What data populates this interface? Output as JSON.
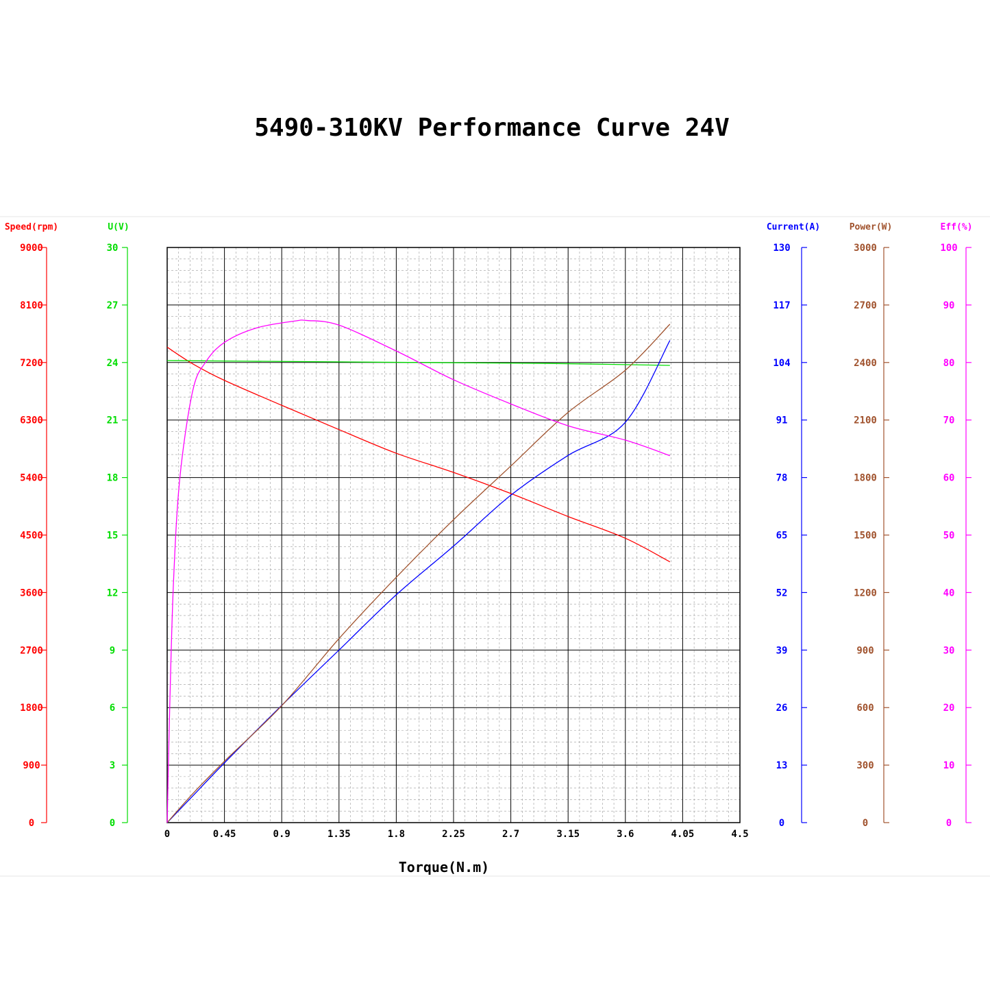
{
  "chart_data": {
    "type": "line",
    "title": "5490-310KV Performance Curve 24V",
    "xlabel": "Torque(N.m)",
    "xlim": [
      0,
      4.5
    ],
    "x_ticks": [
      "0",
      "0.45",
      "0.9",
      "1.35",
      "1.8",
      "2.25",
      "2.7",
      "3.15",
      "3.6",
      "4.05",
      "4.5"
    ],
    "grid": true,
    "axes": [
      {
        "key": "speed",
        "side": "left",
        "label": "Speed(rpm)",
        "color": "#ff0000",
        "range": [
          0,
          9000
        ],
        "ticks": [
          "0",
          "900",
          "1800",
          "2700",
          "3600",
          "4500",
          "5400",
          "6300",
          "7200",
          "8100",
          "9000"
        ]
      },
      {
        "key": "voltage",
        "side": "left",
        "label": "U(V)",
        "color": "#00dd00",
        "range": [
          0,
          30
        ],
        "ticks": [
          "0",
          "3",
          "6",
          "9",
          "12",
          "15",
          "18",
          "21",
          "24",
          "27",
          "30"
        ]
      },
      {
        "key": "current",
        "side": "right",
        "label": "Current(A)",
        "color": "#0000ff",
        "range": [
          0,
          130
        ],
        "ticks": [
          "0",
          "13",
          "26",
          "39",
          "52",
          "65",
          "78",
          "91",
          "104",
          "117",
          "130"
        ]
      },
      {
        "key": "power",
        "side": "right",
        "label": "Power(W)",
        "color": "#a0522d",
        "range": [
          0,
          3000
        ],
        "ticks": [
          "0",
          "300",
          "600",
          "900",
          "1200",
          "1500",
          "1800",
          "2100",
          "2400",
          "2700",
          "3000"
        ]
      },
      {
        "key": "efficiency",
        "side": "right",
        "label": "Eff(%)",
        "color": "#ff00ff",
        "range": [
          0,
          100
        ],
        "ticks": [
          "0",
          "10",
          "20",
          "30",
          "40",
          "50",
          "60",
          "70",
          "80",
          "90",
          "100"
        ]
      }
    ],
    "series": [
      {
        "axis": "speed",
        "color": "#ff0000",
        "x": [
          0,
          0.2,
          0.45,
          0.9,
          1.35,
          1.8,
          2.25,
          2.7,
          3.15,
          3.6,
          3.95
        ],
        "y": [
          7440,
          7180,
          6920,
          6530,
          6150,
          5780,
          5480,
          5150,
          4790,
          4450,
          4080
        ]
      },
      {
        "axis": "voltage",
        "color": "#00dd00",
        "x": [
          0,
          1.0,
          2.0,
          3.0,
          3.95
        ],
        "y": [
          24.1,
          24.05,
          24.0,
          23.95,
          23.85
        ]
      },
      {
        "axis": "current",
        "color": "#0000ff",
        "x": [
          0,
          0.2,
          0.45,
          0.9,
          1.35,
          1.8,
          2.25,
          2.7,
          3.15,
          3.6,
          3.95
        ],
        "y": [
          0,
          6,
          13.5,
          26.5,
          39,
          51.5,
          62.5,
          74,
          83,
          90.5,
          109
        ]
      },
      {
        "axis": "power",
        "color": "#a0522d",
        "x": [
          0,
          0.2,
          0.45,
          0.9,
          1.35,
          1.8,
          2.25,
          2.7,
          3.15,
          3.6,
          3.95
        ],
        "y": [
          0,
          150,
          320,
          610,
          960,
          1280,
          1580,
          1860,
          2140,
          2360,
          2600
        ]
      },
      {
        "axis": "efficiency",
        "color": "#ff00ff",
        "x": [
          0,
          0.02,
          0.05,
          0.1,
          0.2,
          0.3,
          0.45,
          0.7,
          1.0,
          1.1,
          1.35,
          1.8,
          2.25,
          2.7,
          3.15,
          3.6,
          3.95
        ],
        "y": [
          0,
          20,
          42,
          60,
          75,
          80,
          83.5,
          86,
          87.2,
          87.3,
          86.5,
          82,
          77,
          72.8,
          69,
          66.5,
          63.8
        ]
      }
    ]
  }
}
